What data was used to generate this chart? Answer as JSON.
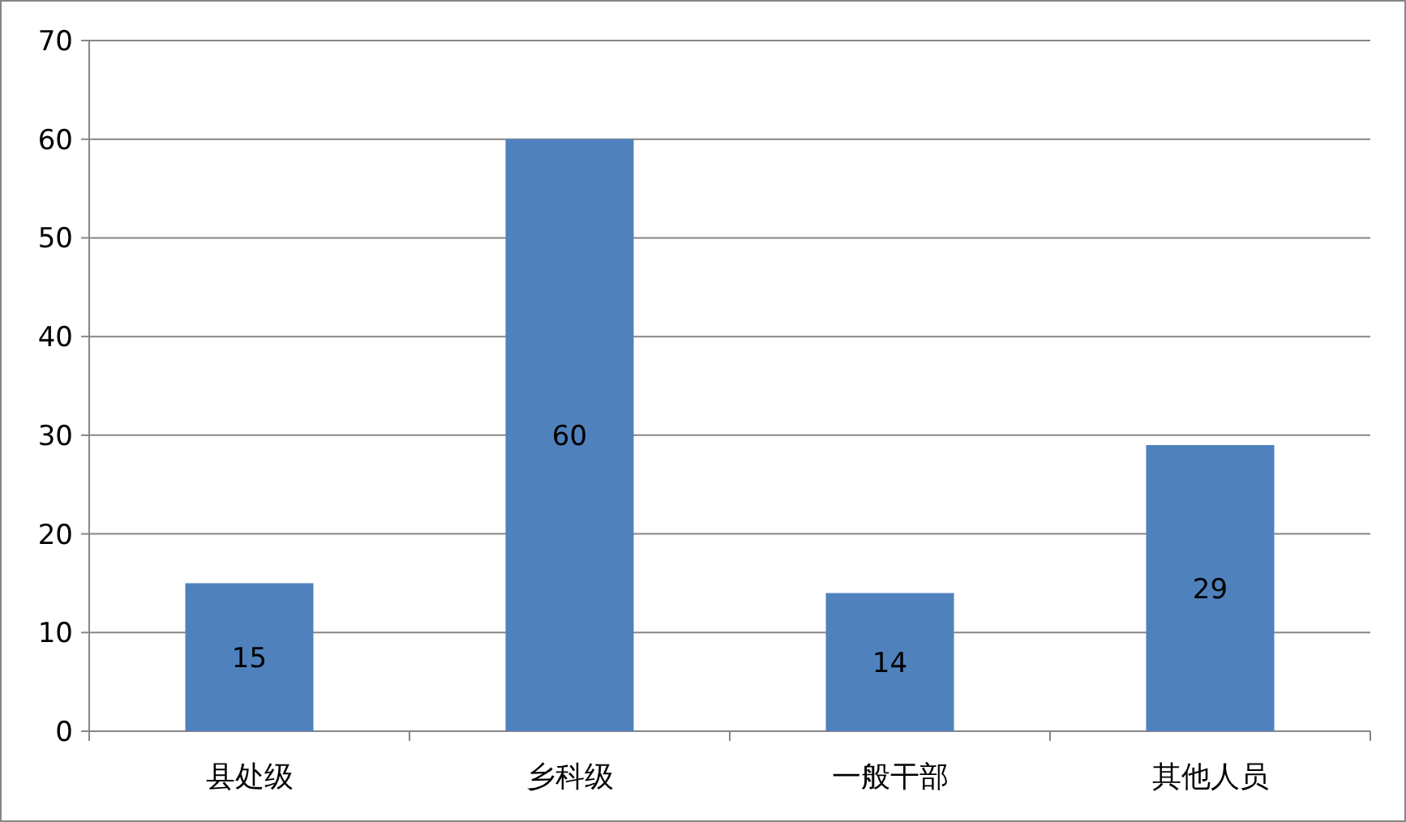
{
  "chart_data": {
    "type": "bar",
    "categories": [
      "县处级",
      "乡科级",
      "一般干部",
      "其他人员"
    ],
    "values": [
      15,
      60,
      14,
      29
    ],
    "color": "#4f81bd",
    "ylim": [
      0,
      70
    ],
    "yticks": [
      0,
      10,
      20,
      30,
      40,
      50,
      60,
      70
    ],
    "grid": "y",
    "data_labels": true
  }
}
